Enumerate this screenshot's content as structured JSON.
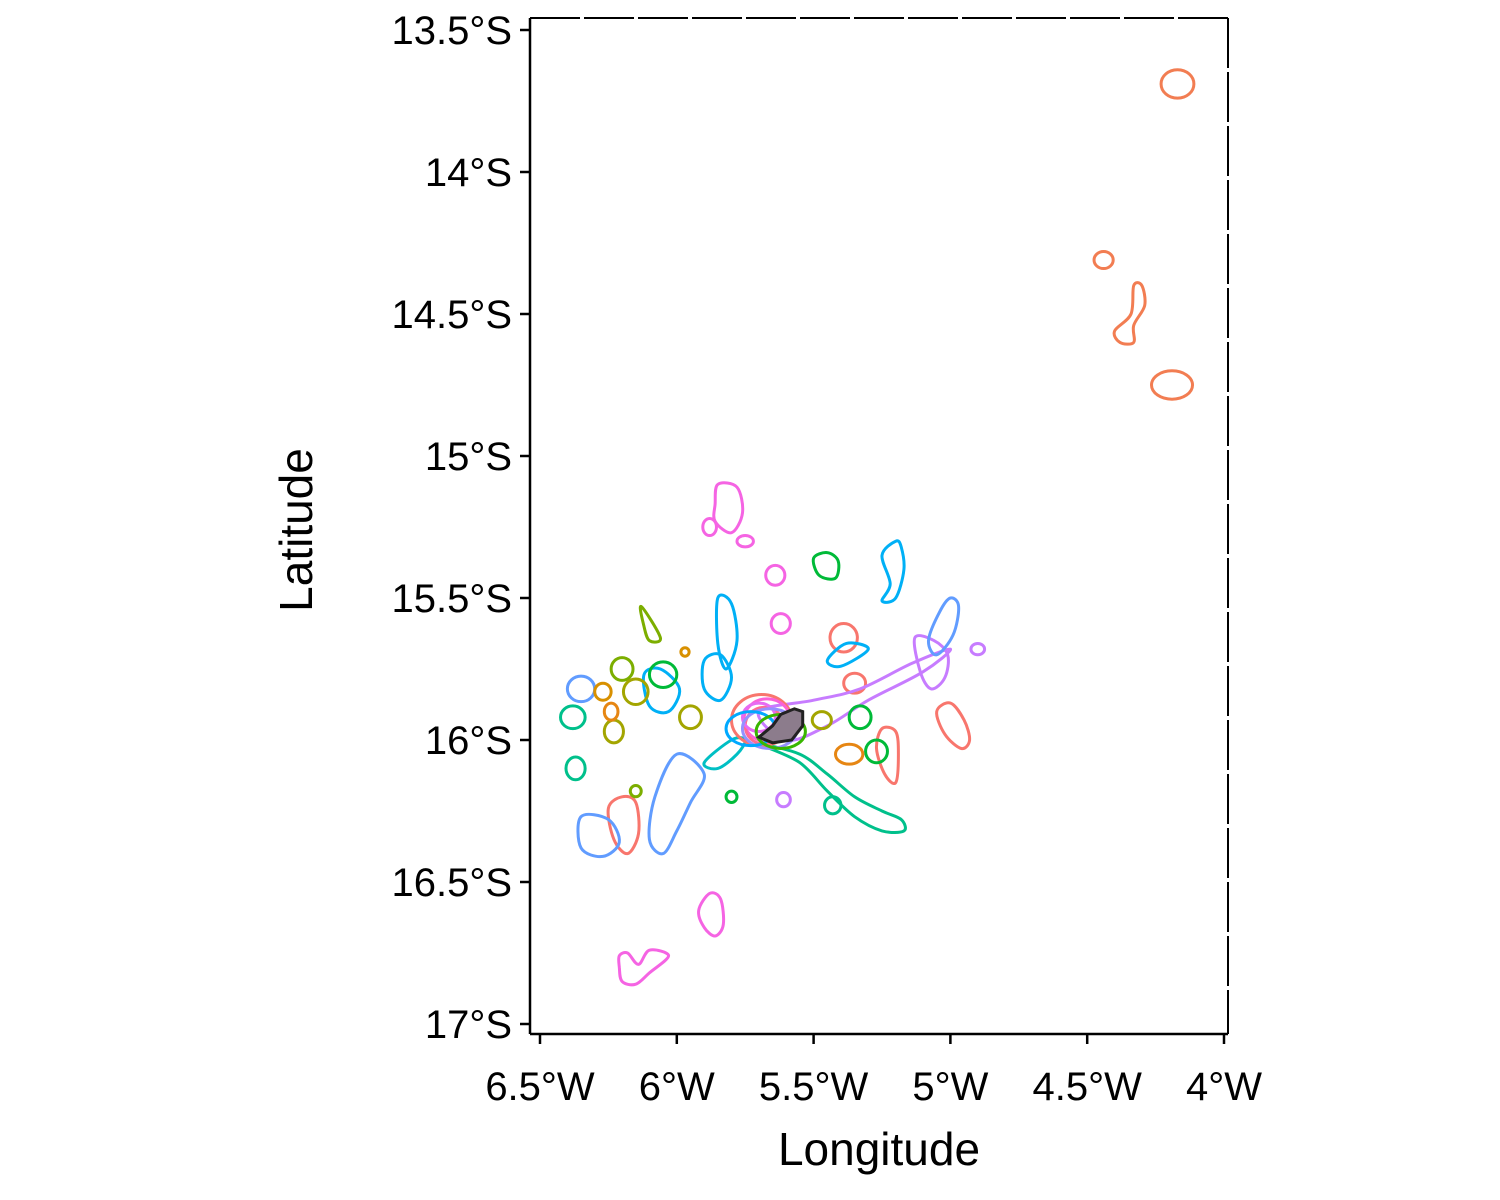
{
  "chart_data": {
    "type": "map",
    "xlabel": "Longitude",
    "ylabel": "Latitude",
    "xlim": [
      -6.5,
      -4.0
    ],
    "ylim": [
      -17.0,
      -13.5
    ],
    "x_ticks": [
      {
        "value": -6.5,
        "label": "6.5°W"
      },
      {
        "value": -6.0,
        "label": "6°W"
      },
      {
        "value": -5.5,
        "label": "5.5°W"
      },
      {
        "value": -5.0,
        "label": "5°W"
      },
      {
        "value": -4.5,
        "label": "4.5°W"
      },
      {
        "value": -4.0,
        "label": "4°W"
      }
    ],
    "y_ticks": [
      {
        "value": -13.5,
        "label": "13.5°S"
      },
      {
        "value": -14.0,
        "label": "14°S"
      },
      {
        "value": -14.5,
        "label": "14.5°S"
      },
      {
        "value": -15.0,
        "label": "15°S"
      },
      {
        "value": -15.5,
        "label": "15.5°S"
      },
      {
        "value": -16.0,
        "label": "16°S"
      },
      {
        "value": -16.5,
        "label": "16.5°S"
      },
      {
        "value": -17.0,
        "label": "17°S"
      }
    ],
    "grid": false,
    "colony_polygon": {
      "fill": "#8c7c8c",
      "stroke": "#222222",
      "points": [
        [
          -5.7,
          -15.99
        ],
        [
          -5.65,
          -15.95
        ],
        [
          -5.62,
          -15.91
        ],
        [
          -5.57,
          -15.89
        ],
        [
          -5.54,
          -15.9
        ],
        [
          -5.54,
          -15.95
        ],
        [
          -5.58,
          -16.0
        ],
        [
          -5.65,
          -16.01
        ]
      ]
    },
    "contours": [
      {
        "color": "#f27d52",
        "shape": "ellipse",
        "center": [
          -4.17,
          -13.69
        ],
        "radii": [
          0.06,
          0.05
        ]
      },
      {
        "color": "#f27d52",
        "shape": "ellipse",
        "center": [
          -4.44,
          -14.31
        ],
        "radii": [
          0.035,
          0.03
        ]
      },
      {
        "color": "#f27d52",
        "shape": "path",
        "points": [
          [
            -4.33,
            -14.4
          ],
          [
            -4.3,
            -14.4
          ],
          [
            -4.29,
            -14.47
          ],
          [
            -4.33,
            -14.54
          ],
          [
            -4.33,
            -14.6
          ],
          [
            -4.38,
            -14.6
          ],
          [
            -4.4,
            -14.56
          ],
          [
            -4.34,
            -14.5
          ]
        ]
      },
      {
        "color": "#f27d52",
        "shape": "ellipse",
        "center": [
          -4.19,
          -14.75
        ],
        "radii": [
          0.075,
          0.05
        ]
      },
      {
        "color": "#f8766d",
        "shape": "path",
        "points": [
          [
            -5.05,
            -15.9
          ],
          [
            -5.0,
            -15.87
          ],
          [
            -4.95,
            -15.93
          ],
          [
            -4.93,
            -16.0
          ],
          [
            -4.96,
            -16.03
          ],
          [
            -5.02,
            -15.98
          ]
        ]
      },
      {
        "color": "#f8766d",
        "shape": "path",
        "points": [
          [
            -5.25,
            -15.96
          ],
          [
            -5.2,
            -15.97
          ],
          [
            -5.19,
            -16.05
          ],
          [
            -5.2,
            -16.15
          ],
          [
            -5.24,
            -16.12
          ],
          [
            -5.27,
            -16.03
          ]
        ]
      },
      {
        "color": "#f8766d",
        "shape": "ellipse",
        "center": [
          -5.39,
          -15.64
        ],
        "radii": [
          0.05,
          0.05
        ]
      },
      {
        "color": "#f8766d",
        "shape": "ellipse",
        "center": [
          -5.35,
          -15.8
        ],
        "radii": [
          0.04,
          0.035
        ]
      },
      {
        "color": "#f8766d",
        "shape": "path",
        "points": [
          [
            -6.25,
            -16.24
          ],
          [
            -6.2,
            -16.2
          ],
          [
            -6.15,
            -16.22
          ],
          [
            -6.14,
            -16.33
          ],
          [
            -6.18,
            -16.4
          ],
          [
            -6.23,
            -16.35
          ]
        ]
      },
      {
        "color": "#f564e3",
        "shape": "path",
        "points": [
          [
            -5.86,
            -15.17
          ],
          [
            -5.85,
            -15.1
          ],
          [
            -5.78,
            -15.11
          ],
          [
            -5.76,
            -15.2
          ],
          [
            -5.8,
            -15.27
          ],
          [
            -5.86,
            -15.23
          ]
        ]
      },
      {
        "color": "#f564e3",
        "shape": "ellipse",
        "center": [
          -5.88,
          -15.25
        ],
        "radii": [
          0.025,
          0.03
        ]
      },
      {
        "color": "#f564e3",
        "shape": "ellipse",
        "center": [
          -5.75,
          -15.3
        ],
        "radii": [
          0.03,
          0.02
        ]
      },
      {
        "color": "#f564e3",
        "shape": "ellipse",
        "center": [
          -5.64,
          -15.42
        ],
        "radii": [
          0.035,
          0.035
        ]
      },
      {
        "color": "#f564e3",
        "shape": "ellipse",
        "center": [
          -5.62,
          -15.59
        ],
        "radii": [
          0.035,
          0.035
        ]
      },
      {
        "color": "#f564e3",
        "shape": "path",
        "points": [
          [
            -5.92,
            -16.6
          ],
          [
            -5.88,
            -16.54
          ],
          [
            -5.84,
            -16.56
          ],
          [
            -5.83,
            -16.65
          ],
          [
            -5.86,
            -16.69
          ],
          [
            -5.9,
            -16.66
          ]
        ]
      },
      {
        "color": "#f564e3",
        "shape": "path",
        "points": [
          [
            -6.21,
            -16.76
          ],
          [
            -6.18,
            -16.75
          ],
          [
            -6.14,
            -16.79
          ],
          [
            -6.1,
            -16.74
          ],
          [
            -6.03,
            -16.76
          ],
          [
            -6.1,
            -16.82
          ],
          [
            -6.15,
            -16.86
          ],
          [
            -6.2,
            -16.85
          ],
          [
            -6.21,
            -16.8
          ]
        ]
      },
      {
        "color": "#c77cff",
        "shape": "path",
        "points": [
          [
            -5.13,
            -15.64
          ],
          [
            -5.06,
            -15.65
          ],
          [
            -5.01,
            -15.7
          ],
          [
            -5.02,
            -15.78
          ],
          [
            -5.07,
            -15.82
          ],
          [
            -5.11,
            -15.76
          ]
        ]
      },
      {
        "color": "#c77cff",
        "shape": "ellipse",
        "center": [
          -4.9,
          -15.68
        ],
        "radii": [
          0.025,
          0.02
        ]
      },
      {
        "color": "#c77cff",
        "shape": "ellipse",
        "center": [
          -5.61,
          -16.21
        ],
        "radii": [
          0.025,
          0.025
        ]
      },
      {
        "color": "#c77cff",
        "shape": "path",
        "points": [
          [
            -5.7,
            -15.9
          ],
          [
            -5.5,
            -15.86
          ],
          [
            -5.33,
            -15.82
          ],
          [
            -5.14,
            -15.73
          ],
          [
            -5.0,
            -15.68
          ],
          [
            -5.1,
            -15.76
          ],
          [
            -5.3,
            -15.86
          ],
          [
            -5.45,
            -15.95
          ],
          [
            -5.6,
            -16.0
          ]
        ]
      },
      {
        "color": "#619cff",
        "shape": "path",
        "points": [
          [
            -5.0,
            -15.5
          ],
          [
            -4.97,
            -15.53
          ],
          [
            -4.99,
            -15.63
          ],
          [
            -5.05,
            -15.7
          ],
          [
            -5.08,
            -15.65
          ],
          [
            -5.04,
            -15.55
          ]
        ]
      },
      {
        "color": "#619cff",
        "shape": "path",
        "points": [
          [
            -6.35,
            -16.27
          ],
          [
            -6.25,
            -16.28
          ],
          [
            -6.21,
            -16.36
          ],
          [
            -6.27,
            -16.41
          ],
          [
            -6.35,
            -16.38
          ]
        ]
      },
      {
        "color": "#619cff",
        "shape": "ellipse",
        "center": [
          -6.35,
          -15.82
        ],
        "radii": [
          0.05,
          0.045
        ]
      },
      {
        "color": "#619cff",
        "shape": "path",
        "points": [
          [
            -6.0,
            -16.05
          ],
          [
            -5.9,
            -16.12
          ],
          [
            -5.95,
            -16.22
          ],
          [
            -6.0,
            -16.32
          ],
          [
            -6.05,
            -16.4
          ],
          [
            -6.1,
            -16.35
          ],
          [
            -6.08,
            -16.2
          ]
        ]
      },
      {
        "color": "#00b0f6",
        "shape": "path",
        "points": [
          [
            -5.2,
            -15.3
          ],
          [
            -5.25,
            -15.35
          ],
          [
            -5.22,
            -15.45
          ],
          [
            -5.25,
            -15.51
          ],
          [
            -5.2,
            -15.5
          ],
          [
            -5.17,
            -15.4
          ],
          [
            -5.18,
            -15.32
          ]
        ]
      },
      {
        "color": "#00b0f6",
        "shape": "path",
        "points": [
          [
            -6.12,
            -15.77
          ],
          [
            -6.06,
            -15.75
          ],
          [
            -5.99,
            -15.82
          ],
          [
            -6.03,
            -15.9
          ],
          [
            -6.1,
            -15.88
          ]
        ]
      },
      {
        "color": "#00b0f6",
        "shape": "path",
        "points": [
          [
            -5.9,
            -15.72
          ],
          [
            -5.84,
            -15.7
          ],
          [
            -5.8,
            -15.78
          ],
          [
            -5.84,
            -15.86
          ],
          [
            -5.9,
            -15.82
          ]
        ]
      },
      {
        "color": "#00b0f6",
        "shape": "path",
        "points": [
          [
            -5.85,
            -15.5
          ],
          [
            -5.8,
            -15.52
          ],
          [
            -5.78,
            -15.65
          ],
          [
            -5.82,
            -15.75
          ],
          [
            -5.85,
            -15.66
          ]
        ]
      },
      {
        "color": "#00b0f6",
        "shape": "path",
        "points": [
          [
            -5.38,
            -15.66
          ],
          [
            -5.3,
            -15.68
          ],
          [
            -5.4,
            -15.74
          ],
          [
            -5.45,
            -15.72
          ]
        ]
      },
      {
        "color": "#00bfc4",
        "shape": "path",
        "points": [
          [
            -5.75,
            -16.0
          ],
          [
            -5.78,
            -16.05
          ],
          [
            -5.85,
            -16.1
          ],
          [
            -5.9,
            -16.08
          ],
          [
            -5.8,
            -16.0
          ]
        ]
      },
      {
        "color": "#00c08b",
        "shape": "path",
        "points": [
          [
            -5.68,
            -16.02
          ],
          [
            -5.55,
            -16.05
          ],
          [
            -5.45,
            -16.12
          ],
          [
            -5.35,
            -16.2
          ],
          [
            -5.25,
            -16.25
          ],
          [
            -5.18,
            -16.28
          ],
          [
            -5.17,
            -16.32
          ],
          [
            -5.25,
            -16.32
          ],
          [
            -5.35,
            -16.27
          ],
          [
            -5.45,
            -16.18
          ],
          [
            -5.55,
            -16.08
          ]
        ]
      },
      {
        "color": "#00c08b",
        "shape": "ellipse",
        "center": [
          -6.38,
          -15.92
        ],
        "radii": [
          0.045,
          0.04
        ]
      },
      {
        "color": "#00c08b",
        "shape": "ellipse",
        "center": [
          -6.37,
          -16.1
        ],
        "radii": [
          0.035,
          0.04
        ]
      },
      {
        "color": "#00c08b",
        "shape": "ellipse",
        "center": [
          -5.43,
          -16.23
        ],
        "radii": [
          0.03,
          0.03
        ]
      },
      {
        "color": "#00ba38",
        "shape": "path",
        "points": [
          [
            -5.5,
            -15.36
          ],
          [
            -5.45,
            -15.34
          ],
          [
            -5.41,
            -15.37
          ],
          [
            -5.42,
            -15.43
          ],
          [
            -5.48,
            -15.42
          ]
        ]
      },
      {
        "color": "#00ba38",
        "shape": "ellipse",
        "center": [
          -5.33,
          -15.92
        ],
        "radii": [
          0.04,
          0.04
        ]
      },
      {
        "color": "#00ba38",
        "shape": "ellipse",
        "center": [
          -5.27,
          -16.04
        ],
        "radii": [
          0.04,
          0.04
        ]
      },
      {
        "color": "#00ba38",
        "shape": "ellipse",
        "center": [
          -6.05,
          -15.77
        ],
        "radii": [
          0.05,
          0.045
        ]
      },
      {
        "color": "#00ba38",
        "shape": "ellipse",
        "center": [
          -5.8,
          -16.2
        ],
        "radii": [
          0.02,
          0.02
        ]
      },
      {
        "color": "#7cae00",
        "shape": "path",
        "points": [
          [
            -6.13,
            -15.53
          ],
          [
            -6.12,
            -15.6
          ],
          [
            -6.1,
            -15.65
          ],
          [
            -6.06,
            -15.64
          ]
        ]
      },
      {
        "color": "#7cae00",
        "shape": "ellipse",
        "center": [
          -6.2,
          -15.75
        ],
        "radii": [
          0.04,
          0.04
        ]
      },
      {
        "color": "#7cae00",
        "shape": "ellipse",
        "center": [
          -6.15,
          -16.18
        ],
        "radii": [
          0.02,
          0.02
        ]
      },
      {
        "color": "#a3a500",
        "shape": "ellipse",
        "center": [
          -6.15,
          -15.83
        ],
        "radii": [
          0.045,
          0.045
        ]
      },
      {
        "color": "#a3a500",
        "shape": "ellipse",
        "center": [
          -6.23,
          -15.97
        ],
        "radii": [
          0.035,
          0.04
        ]
      },
      {
        "color": "#a3a500",
        "shape": "ellipse",
        "center": [
          -5.95,
          -15.92
        ],
        "radii": [
          0.04,
          0.04
        ]
      },
      {
        "color": "#a3a500",
        "shape": "ellipse",
        "center": [
          -5.47,
          -15.93
        ],
        "radii": [
          0.035,
          0.03
        ]
      },
      {
        "color": "#d89000",
        "shape": "ellipse",
        "center": [
          -6.27,
          -15.83
        ],
        "radii": [
          0.03,
          0.03
        ]
      },
      {
        "color": "#d89000",
        "shape": "ellipse",
        "center": [
          -5.97,
          -15.69
        ],
        "radii": [
          0.015,
          0.015
        ]
      },
      {
        "color": "#e68613",
        "shape": "ellipse",
        "center": [
          -5.37,
          -16.05
        ],
        "radii": [
          0.05,
          0.035
        ]
      },
      {
        "color": "#e68613",
        "shape": "ellipse",
        "center": [
          -6.24,
          -15.9
        ],
        "radii": [
          0.025,
          0.03
        ]
      },
      {
        "color": "#f8766d",
        "shape": "ellipse",
        "center": [
          -5.69,
          -15.93
        ],
        "radii": [
          0.11,
          0.09
        ]
      },
      {
        "color": "#fb61d7",
        "shape": "ellipse",
        "center": [
          -5.67,
          -15.93
        ],
        "radii": [
          0.085,
          0.075
        ]
      },
      {
        "color": "#ff6c91",
        "shape": "ellipse",
        "center": [
          -5.68,
          -15.95
        ],
        "radii": [
          0.07,
          0.065
        ]
      },
      {
        "color": "#e76bf3",
        "shape": "ellipse",
        "center": [
          -5.7,
          -15.92
        ],
        "radii": [
          0.06,
          0.05
        ]
      },
      {
        "color": "#9590ff",
        "shape": "ellipse",
        "center": [
          -5.66,
          -15.96
        ],
        "radii": [
          0.1,
          0.07
        ]
      },
      {
        "color": "#00a9ff",
        "shape": "ellipse",
        "center": [
          -5.73,
          -15.96
        ],
        "radii": [
          0.09,
          0.06
        ]
      },
      {
        "color": "#39b600",
        "shape": "ellipse",
        "center": [
          -5.62,
          -15.97
        ],
        "radii": [
          0.09,
          0.06
        ]
      }
    ]
  }
}
